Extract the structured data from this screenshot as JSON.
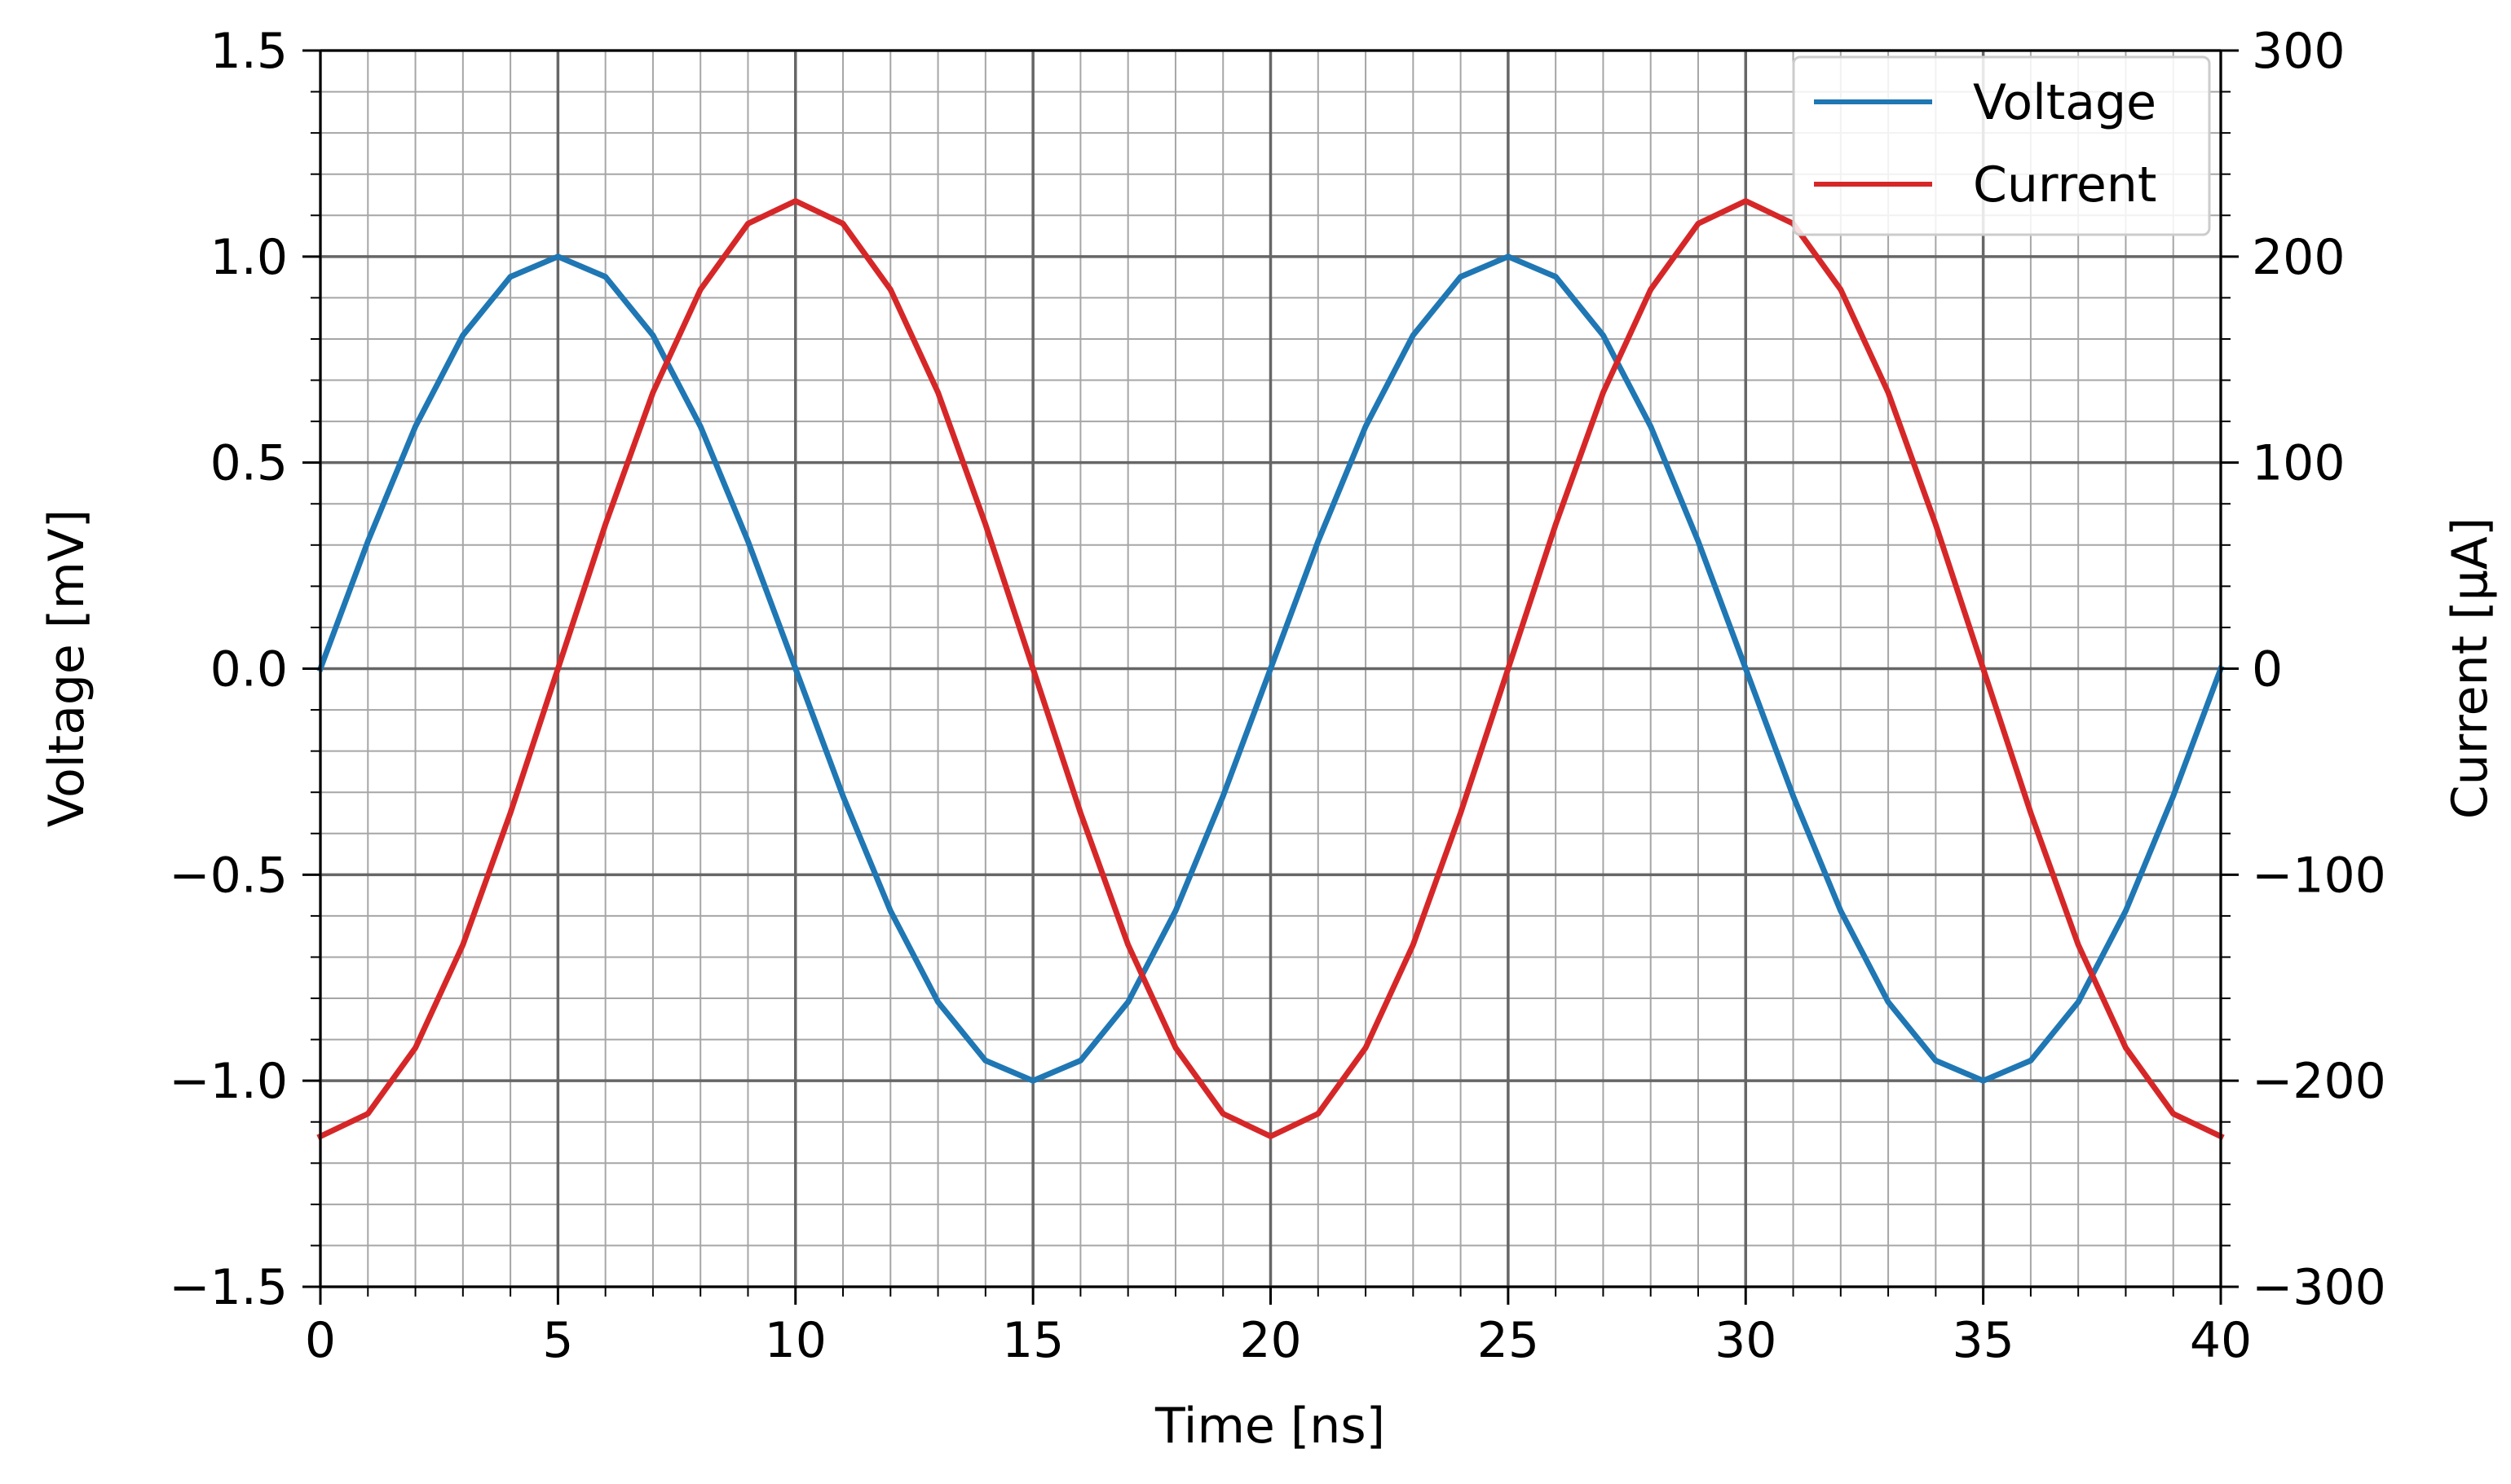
{
  "chart_data": {
    "type": "line",
    "title": "",
    "xlabel": "Time [ns]",
    "ylabel": "Voltage [mV]",
    "y2label": "Current [μA]",
    "xlim": [
      0,
      40
    ],
    "ylim": [
      -1.5,
      1.5
    ],
    "y2lim": [
      -300,
      300
    ],
    "x_ticks": [
      "0",
      "5",
      "10",
      "15",
      "20",
      "25",
      "30",
      "35",
      "40"
    ],
    "y_ticks": [
      "1.5",
      "1.0",
      "0.5",
      "0.0",
      "−0.5",
      "−1.0",
      "−1.5"
    ],
    "y2_ticks": [
      "300",
      "200",
      "100",
      "0",
      "−100",
      "−200",
      "−300"
    ],
    "grid": "major and minor",
    "legend_position": "top-right",
    "series": [
      {
        "name": "Voltage",
        "axis": "left",
        "color": "#1f77b4",
        "x": [
          0,
          1,
          2,
          3,
          4,
          5,
          6,
          7,
          8,
          9,
          10,
          11,
          12,
          13,
          14,
          15,
          16,
          17,
          18,
          19,
          20,
          21,
          22,
          23,
          24,
          25,
          26,
          27,
          28,
          29,
          30,
          31,
          32,
          33,
          34,
          35,
          36,
          37,
          38,
          39,
          40
        ],
        "y": [
          0.0,
          0.309,
          0.588,
          0.809,
          0.951,
          1.0,
          0.951,
          0.809,
          0.588,
          0.309,
          0.0,
          -0.309,
          -0.588,
          -0.809,
          -0.951,
          -1.0,
          -0.951,
          -0.809,
          -0.588,
          -0.309,
          0.0,
          0.309,
          0.588,
          0.809,
          0.951,
          1.0,
          0.951,
          0.809,
          0.588,
          0.309,
          0.0,
          -0.309,
          -0.588,
          -0.809,
          -0.951,
          -1.0,
          -0.951,
          -0.809,
          -0.588,
          -0.309,
          0.0
        ]
      },
      {
        "name": "Current",
        "axis": "right",
        "color": "#d62728",
        "x": [
          0,
          1,
          2,
          3,
          4,
          5,
          6,
          7,
          8,
          9,
          10,
          11,
          12,
          13,
          14,
          15,
          16,
          17,
          18,
          19,
          20,
          21,
          22,
          23,
          24,
          25,
          26,
          27,
          28,
          29,
          30,
          31,
          32,
          33,
          34,
          35,
          36,
          37,
          38,
          39,
          40
        ],
        "y": [
          -227,
          -216,
          -184,
          -134,
          -70,
          0,
          70,
          134,
          184,
          216,
          227,
          216,
          184,
          134,
          70,
          0,
          -70,
          -134,
          -184,
          -216,
          -227,
          -216,
          -184,
          -134,
          -70,
          0,
          70,
          134,
          184,
          216,
          227,
          216,
          184,
          134,
          70,
          0,
          -70,
          -134,
          -184,
          -216,
          -227
        ]
      }
    ]
  }
}
